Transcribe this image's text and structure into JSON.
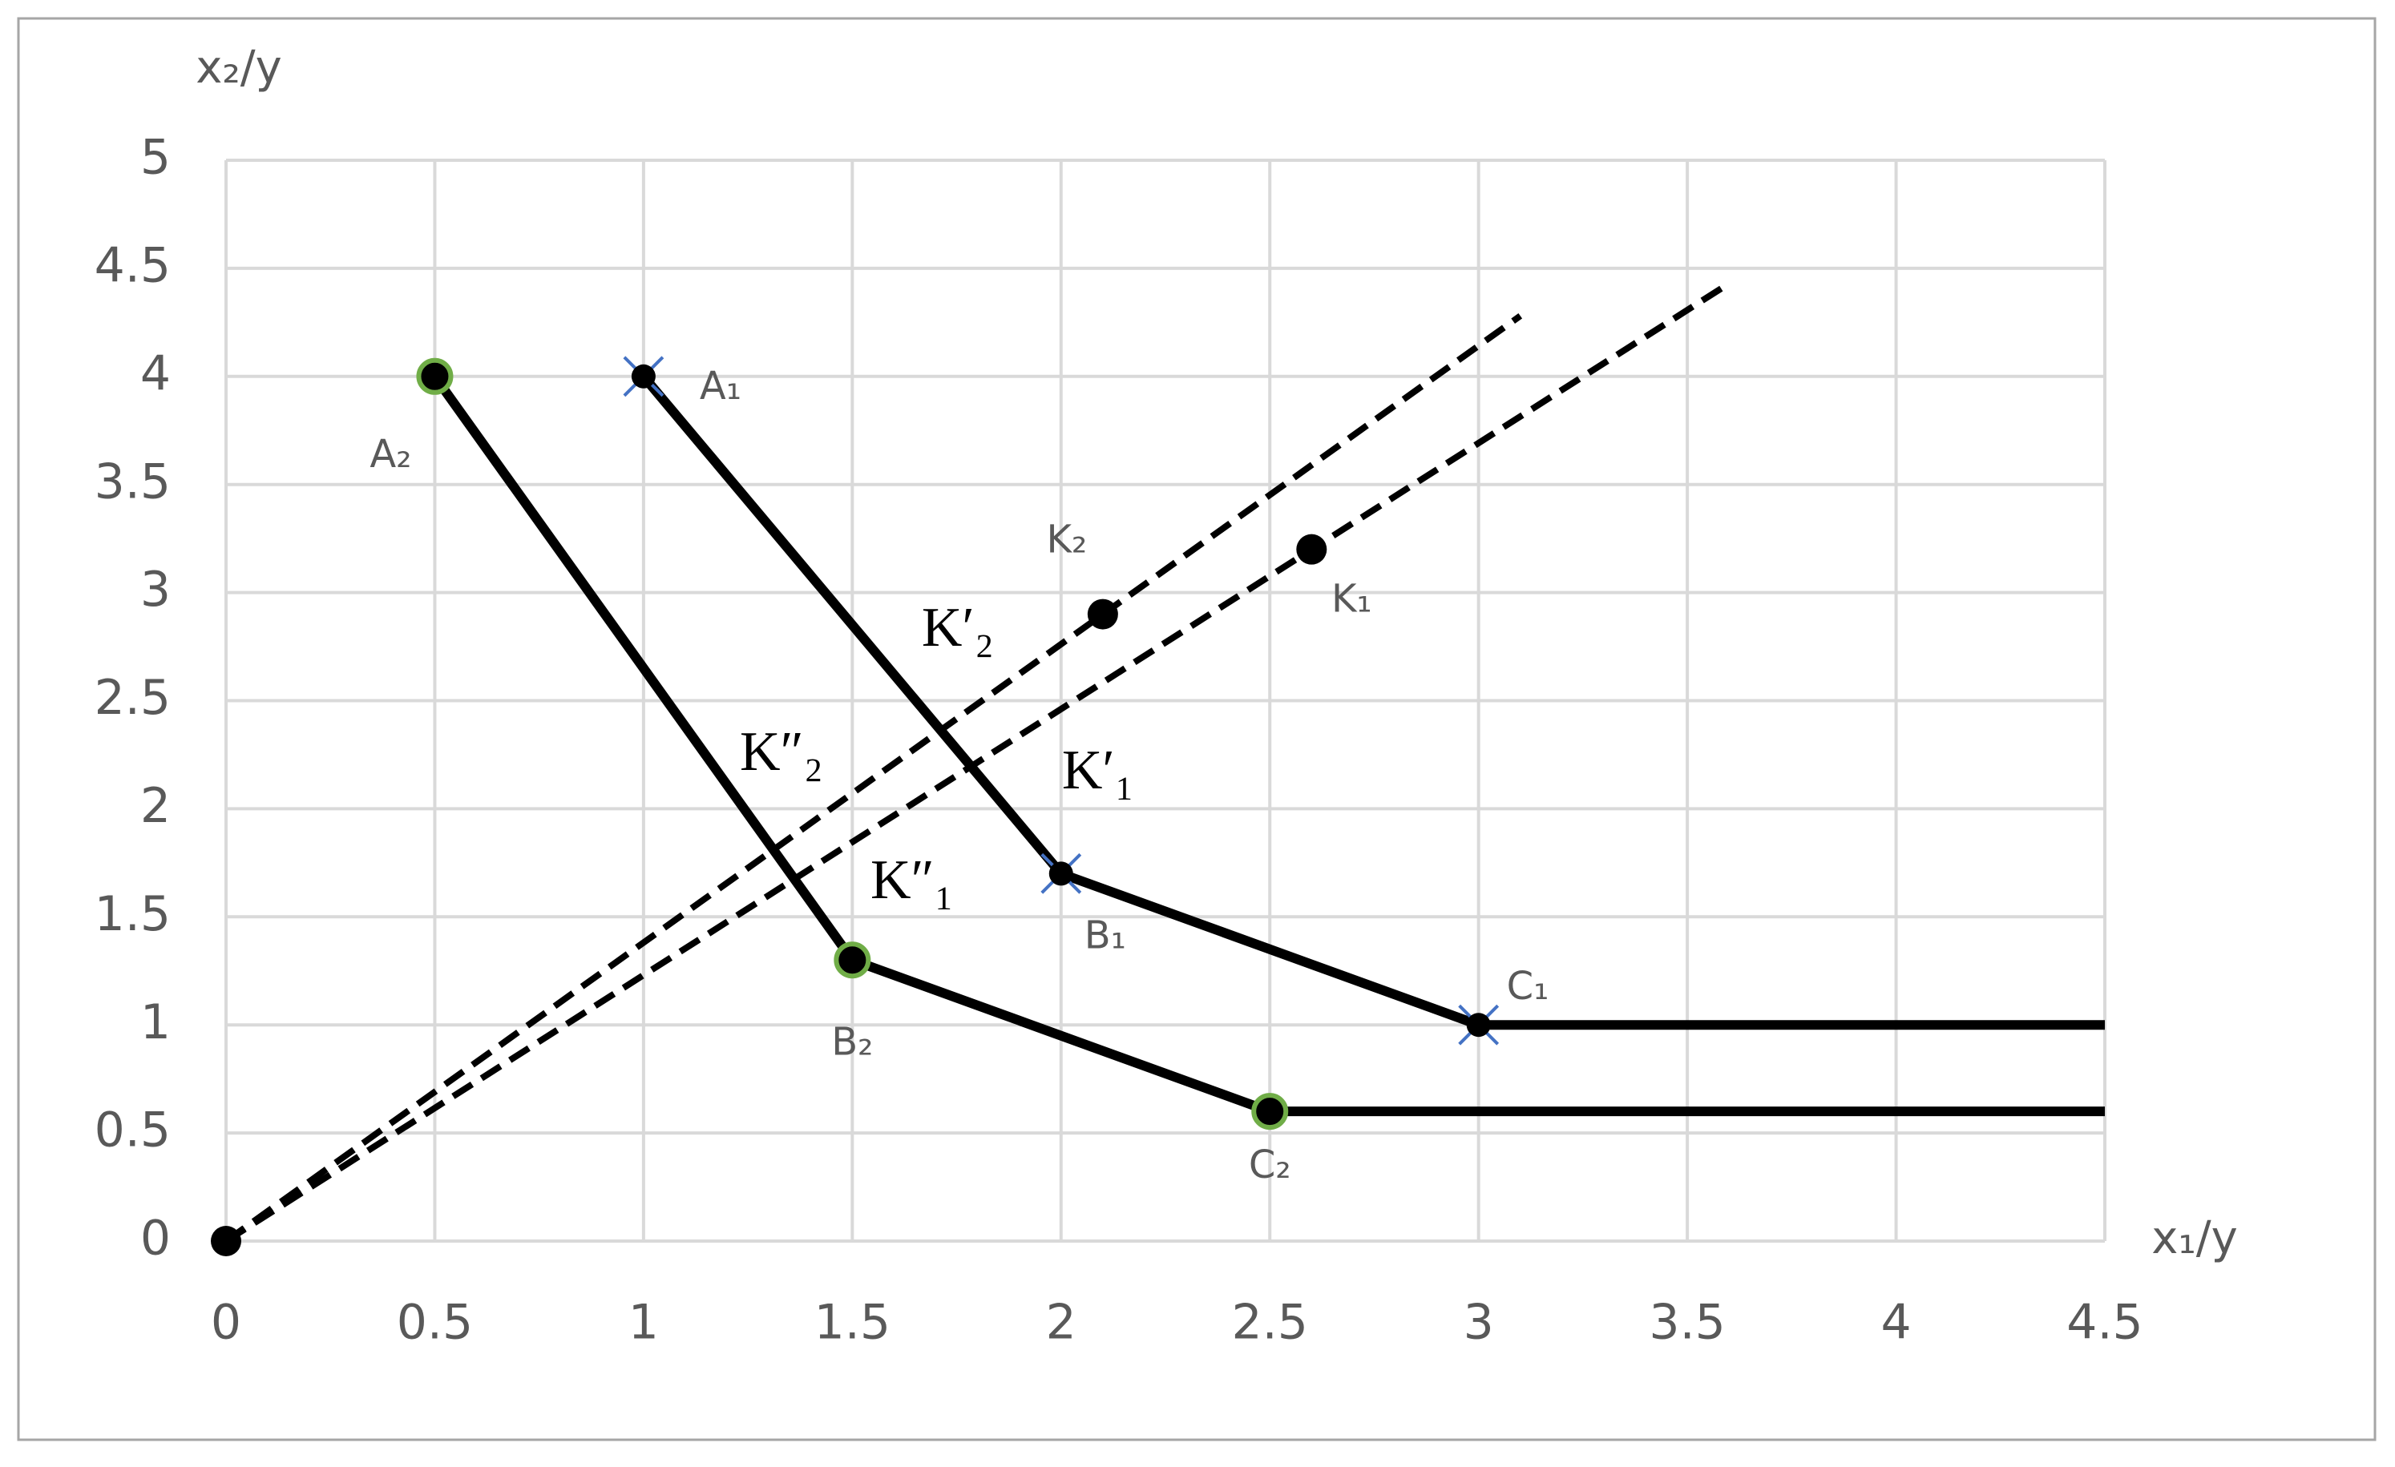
{
  "chart_data": {
    "type": "line",
    "x_label": "x₁/y",
    "y_label": "x₂/y",
    "xlim": [
      0,
      4.5
    ],
    "xticks": [
      0,
      0.5,
      1,
      1.5,
      2,
      2.5,
      3,
      3.5,
      4,
      4.5
    ],
    "ylim": [
      0,
      5
    ],
    "yticks": [
      0,
      0.5,
      1,
      1.5,
      2,
      2.5,
      3,
      3.5,
      4,
      4.5,
      5
    ],
    "grid": true,
    "series": [
      {
        "type": "line",
        "color": "#000000",
        "marker": "cross",
        "marker_color": "#4472c4",
        "x": [
          1,
          2,
          3,
          4.5
        ],
        "values": [
          4,
          1.7,
          1,
          1
        ],
        "point_labels": [
          "A₁",
          "B₁",
          "C₁",
          null
        ]
      },
      {
        "type": "line",
        "color": "#000000",
        "marker": "ring",
        "marker_color": "#70ad47",
        "x": [
          0.5,
          1.5,
          2.5,
          4.5
        ],
        "values": [
          4,
          1.3,
          0.6,
          0.6
        ],
        "point_labels": [
          "A₂",
          "B₂",
          "C₂",
          null
        ]
      },
      {
        "type": "line",
        "color": "#000000",
        "line_style": "dashed",
        "x": [
          0,
          3.6
        ],
        "values": [
          0,
          4.43
        ]
      },
      {
        "type": "line",
        "color": "#000000",
        "line_style": "dashed",
        "x": [
          0,
          3.1
        ],
        "values": [
          0,
          4.28
        ]
      },
      {
        "type": "scatter",
        "color": "#000000",
        "x": [
          2.6,
          2.1
        ],
        "values": [
          3.2,
          2.9
        ],
        "point_labels": [
          "K₁",
          "K₂"
        ]
      },
      {
        "type": "scatter",
        "color": "#000000",
        "x": [
          0
        ],
        "values": [
          0
        ]
      }
    ],
    "annotations": [
      "K′₂",
      "K′₁",
      "K″₂",
      "K″₁"
    ]
  }
}
